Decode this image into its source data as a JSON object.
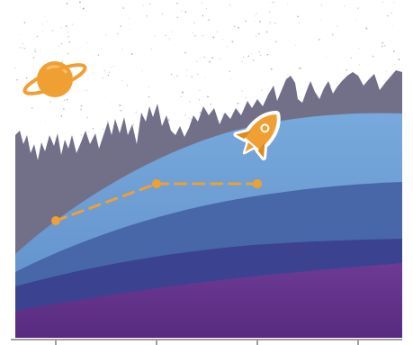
{
  "scene": {
    "colors": {
      "background": "#ffffff",
      "stars": "#9a9a9a",
      "mountains": "#727089",
      "atmosphere_light": "#6a9bd0",
      "atmosphere_mid": "#4f76b4",
      "hill_mid": "#3f5798",
      "hill_dark": "#3a3c86",
      "ground": "#5e2f86",
      "ground_light": "#6c3993",
      "accent_orange": "#f0a032",
      "accent_orange_dark": "#e08a1c",
      "axis": "#a0a0a0"
    },
    "icons": {
      "planet": "saturn-planet-icon",
      "rocket": "rocket-icon"
    },
    "path_points_count": 3,
    "axis_ticks_count": 4
  }
}
